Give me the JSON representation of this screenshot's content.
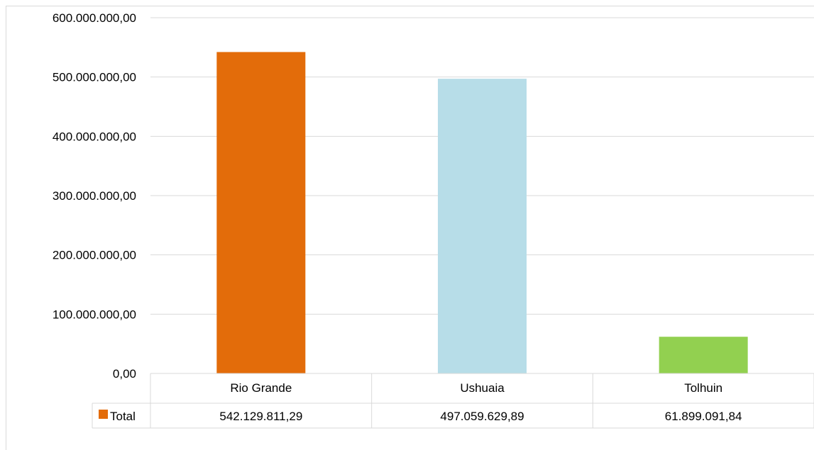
{
  "chart_data": {
    "type": "bar",
    "categories": [
      "Rio Grande",
      "Ushuaia",
      "Tolhuin"
    ],
    "series": [
      {
        "name": "Total",
        "values": [
          542129811.29,
          497059629.89,
          61899091.84
        ],
        "value_labels": [
          "542.129.811,29",
          "497.059.629,89",
          "61.899.091,84"
        ]
      }
    ],
    "bar_colors": [
      "#e36c0a",
      "#b7dde8",
      "#92d050"
    ],
    "legend_key_color": "#e36c0a",
    "ylim": [
      0,
      600000000
    ],
    "y_ticks": [
      0,
      100000000,
      200000000,
      300000000,
      400000000,
      500000000,
      600000000
    ],
    "y_tick_labels": [
      "0,00",
      "100.000.000,00",
      "200.000.000,00",
      "300.000.000,00",
      "400.000.000,00",
      "500.000.000,00",
      "600.000.000,00"
    ],
    "grid": true,
    "legend": "data-table",
    "data_table": true,
    "title": "",
    "xlabel": "",
    "ylabel": ""
  }
}
